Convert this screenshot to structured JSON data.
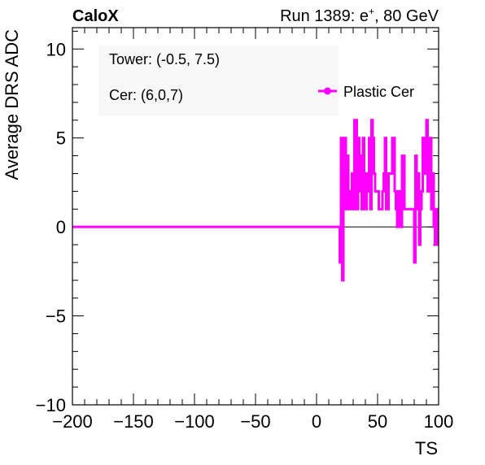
{
  "chart_data": {
    "type": "line",
    "title_left": "CaloX",
    "title_right_prefix": "Run 1389: e",
    "title_right_sup": "+",
    "title_right_suffix": ", 80 GeV",
    "xlabel": "TS",
    "ylabel": "Average DRS ADC",
    "xlim": [
      -200,
      100
    ],
    "ylim": [
      -10,
      11.2
    ],
    "xticks": [
      -200,
      -150,
      -100,
      -50,
      0,
      50,
      100
    ],
    "yticks": [
      -10,
      -5,
      0,
      5,
      10
    ],
    "annotations": [
      "Tower: (-0.5, 7.5)",
      "Cer: (6,0,7)"
    ],
    "legend": {
      "position": "top-right",
      "entries": [
        "Plastic Cer"
      ]
    },
    "zero_line": true,
    "series": [
      {
        "name": "Plastic Cer",
        "color": "#ff00ff",
        "step": true,
        "x": [
          -200,
          19,
          20,
          21,
          22,
          23,
          24,
          25,
          26,
          27,
          28,
          29,
          30,
          31,
          32,
          33,
          34,
          35,
          36,
          37,
          38,
          39,
          40,
          41,
          42,
          43,
          44,
          45,
          46,
          47,
          48,
          49,
          50,
          51,
          52,
          53,
          54,
          55,
          56,
          57,
          58,
          59,
          60,
          61,
          62,
          63,
          64,
          65,
          66,
          67,
          68,
          69,
          70,
          71,
          72,
          73,
          74,
          75,
          76,
          77,
          78,
          79,
          80,
          81,
          82,
          83,
          84,
          85,
          86,
          87,
          88,
          89,
          90,
          91,
          92,
          93,
          94,
          95,
          96,
          97,
          98,
          99
        ],
        "y": [
          0,
          -2,
          5,
          -3,
          2,
          5,
          1,
          4,
          1,
          2,
          1,
          3,
          1,
          6,
          6,
          1,
          5,
          2,
          4,
          1,
          5,
          2,
          1,
          3,
          2,
          5,
          1,
          6,
          5,
          3,
          2,
          2,
          2,
          1,
          1,
          1,
          2,
          3,
          5,
          1,
          1,
          3,
          3,
          3,
          5,
          5,
          2,
          1,
          0,
          2,
          1,
          0,
          4,
          4,
          1,
          1,
          1,
          1,
          1,
          1,
          1,
          1,
          -2,
          4,
          1,
          3,
          -1,
          1,
          2,
          5,
          4,
          3,
          6,
          2,
          3,
          5,
          1,
          3,
          0,
          -1,
          1,
          -1
        ]
      }
    ]
  }
}
